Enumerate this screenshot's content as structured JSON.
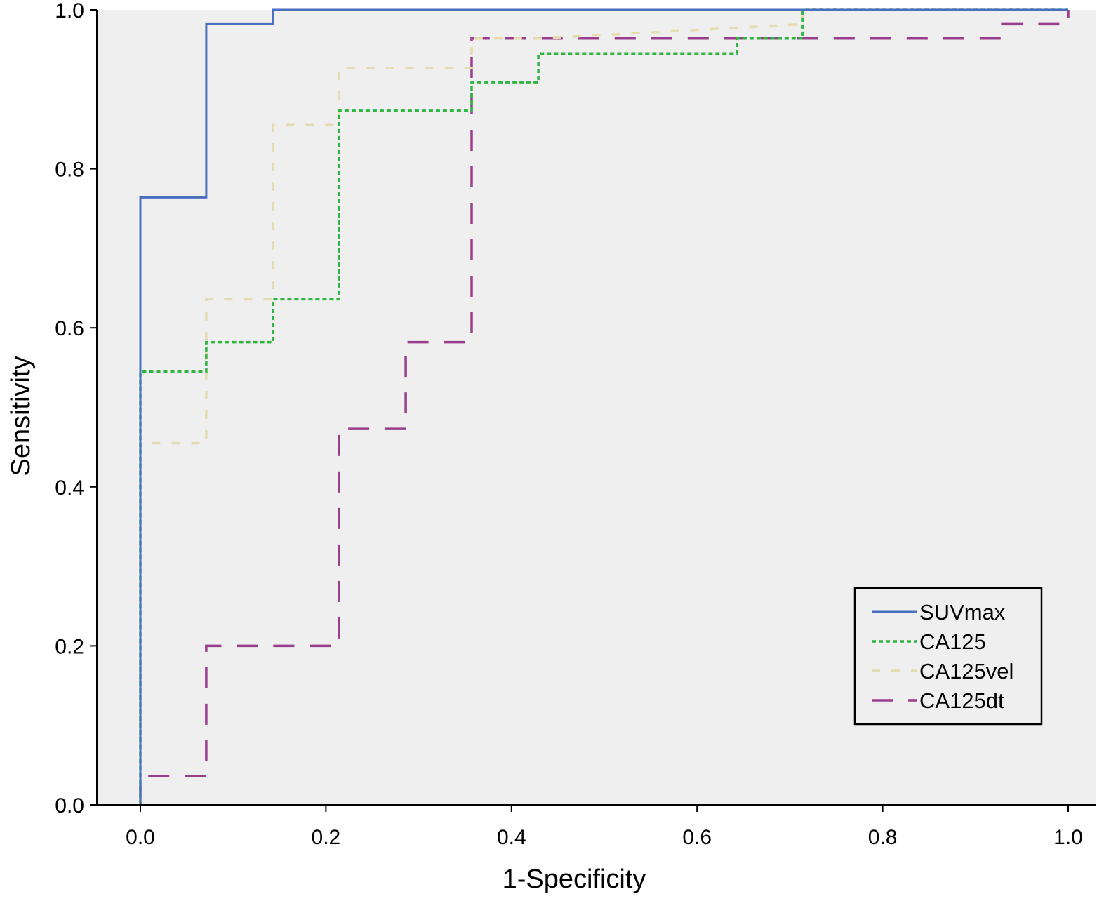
{
  "chart_data": {
    "type": "line",
    "xlabel": "1-Specificity",
    "ylabel": "Sensitivity",
    "xlim": [
      0.0,
      1.0
    ],
    "ylim": [
      0.0,
      1.0
    ],
    "x_ticks": [
      "0.0",
      "0.2",
      "0.4",
      "0.6",
      "0.8",
      "1.0"
    ],
    "y_ticks": [
      "0.0",
      "0.2",
      "0.4",
      "0.6",
      "0.8",
      "1.0"
    ],
    "grid": false,
    "legend_position": "bottom-right",
    "plot_background": "#efefef",
    "series": [
      {
        "name": "SUVmax",
        "color": "#4a6fc1",
        "style": "solid",
        "x": [
          0.0,
          0.0,
          0.071,
          0.071,
          0.143,
          0.143,
          1.0
        ],
        "y": [
          0.0,
          0.764,
          0.764,
          0.982,
          0.982,
          1.0,
          1.0
        ]
      },
      {
        "name": "CA125",
        "color": "#2db53f",
        "style": "dotted",
        "x": [
          0.0,
          0.0,
          0.071,
          0.071,
          0.143,
          0.143,
          0.214,
          0.214,
          0.357,
          0.357,
          0.429,
          0.429,
          0.643,
          0.643,
          0.714,
          0.714,
          1.0
        ],
        "y": [
          0.0,
          0.545,
          0.545,
          0.582,
          0.582,
          0.636,
          0.636,
          0.873,
          0.873,
          0.909,
          0.909,
          0.945,
          0.945,
          0.964,
          0.964,
          1.0,
          1.0
        ]
      },
      {
        "name": "CA125vel",
        "color": "#e4dcae",
        "style": "dashed",
        "x": [
          0.0,
          0.0,
          0.071,
          0.071,
          0.143,
          0.143,
          0.214,
          0.214,
          0.357,
          0.357,
          0.429,
          0.714,
          0.714,
          1.0
        ],
        "y": [
          0.0,
          0.455,
          0.455,
          0.636,
          0.636,
          0.855,
          0.855,
          0.927,
          0.927,
          0.964,
          0.964,
          0.982,
          1.0,
          1.0
        ]
      },
      {
        "name": "CA125dt",
        "color": "#9b3d8e",
        "style": "long-dash",
        "x": [
          0.0,
          0.0,
          0.071,
          0.071,
          0.214,
          0.214,
          0.286,
          0.286,
          0.357,
          0.357,
          0.929,
          0.929,
          1.0,
          1.0
        ],
        "y": [
          0.0,
          0.036,
          0.036,
          0.2,
          0.2,
          0.473,
          0.473,
          0.582,
          0.582,
          0.964,
          0.964,
          0.982,
          0.982,
          1.0
        ]
      }
    ]
  }
}
